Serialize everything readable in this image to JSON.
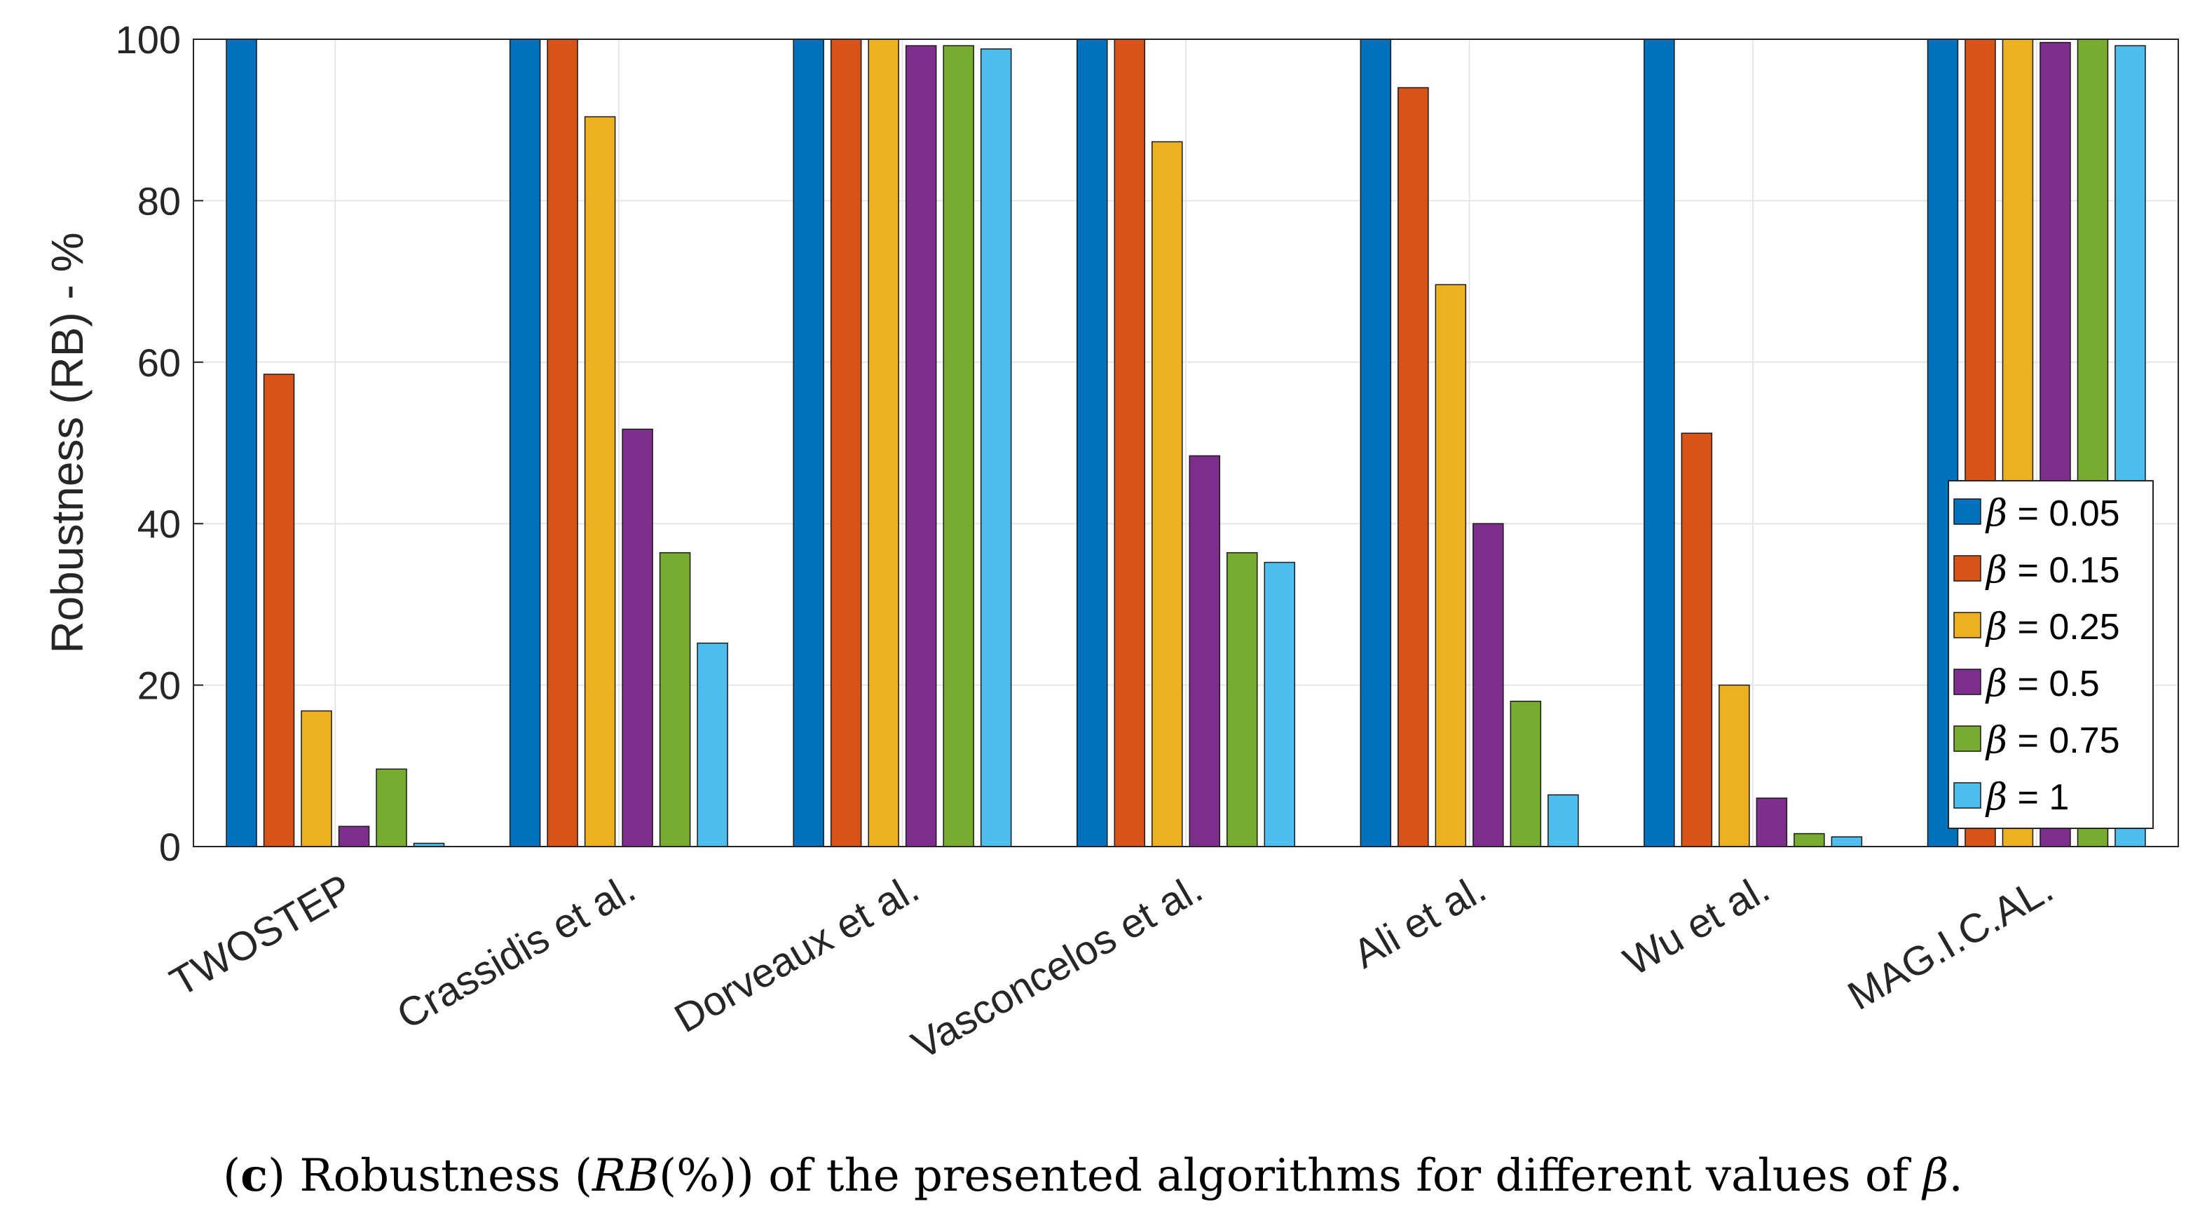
{
  "chart_data": {
    "type": "bar",
    "title": "",
    "xlabel": "",
    "ylabel": "Robustness (RB) - %",
    "ylim": [
      0,
      100
    ],
    "yticks": [
      0,
      20,
      40,
      60,
      80,
      100
    ],
    "grid": true,
    "legend_position": "right",
    "categories": [
      "TWOSTEP",
      "Crassidis et al.",
      "Dorveaux et al.",
      "Vasconcelos et al.",
      "Ali et al.",
      "Wu et al.",
      "MAG.I.C.AL."
    ],
    "series": [
      {
        "name": "β = 0.05",
        "symbol": "β",
        "label_rest": " = 0.05",
        "color": "#0072BD",
        "values": [
          100,
          100,
          100,
          100,
          100,
          100,
          100
        ]
      },
      {
        "name": "β = 0.15",
        "symbol": "β",
        "label_rest": " = 0.15",
        "color": "#D95319",
        "values": [
          58.5,
          100,
          100,
          100,
          94,
          51.2,
          100
        ]
      },
      {
        "name": "β = 0.25",
        "symbol": "β",
        "label_rest": " = 0.25",
        "color": "#EDB120",
        "values": [
          16.8,
          90.4,
          100,
          87.3,
          69.6,
          20,
          100
        ]
      },
      {
        "name": "β = 0.5",
        "symbol": "β",
        "label_rest": " = 0.5",
        "color": "#7E2F8E",
        "values": [
          2.5,
          51.7,
          99.2,
          48.4,
          40,
          6,
          99.6
        ]
      },
      {
        "name": "β = 0.75",
        "symbol": "β",
        "label_rest": " = 0.75",
        "color": "#77AC30",
        "values": [
          9.6,
          36.4,
          99.2,
          36.4,
          18,
          1.6,
          100
        ]
      },
      {
        "name": "β = 1",
        "symbol": "β",
        "label_rest": " = 1",
        "color": "#4DBEEE",
        "values": [
          0.4,
          25.2,
          98.8,
          35.2,
          6.4,
          1.2,
          99.2
        ]
      }
    ]
  },
  "caption": {
    "prefix_open": "(",
    "letter": "c",
    "prefix_close": ") Robustness (",
    "symbol": "RB",
    "middle": "(%)) of the presented algorithms for different values of ",
    "beta": "β",
    "end": "."
  }
}
